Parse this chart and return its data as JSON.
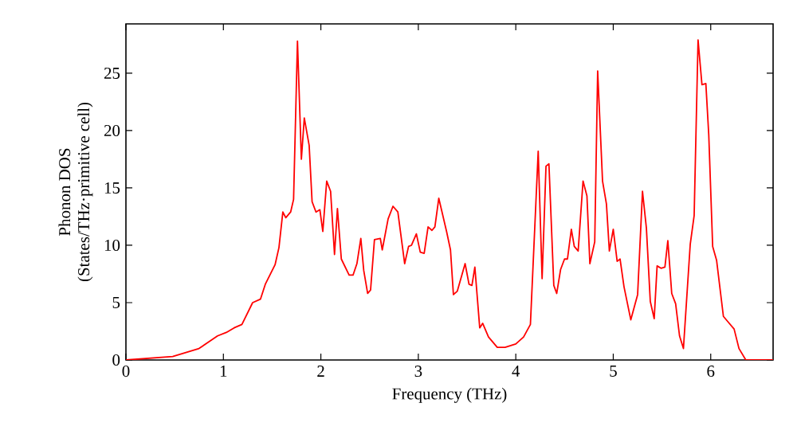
{
  "chart_data": {
    "type": "line",
    "xlabel": "Frequency (THz)",
    "ylabel": "Phonon DOS\n(States/THz·primitive cell)",
    "xlim": [
      0,
      6.64
    ],
    "ylim": [
      0,
      29.3
    ],
    "xticks": [
      0,
      1,
      2,
      3,
      4,
      5,
      6
    ],
    "yticks": [
      0,
      5,
      10,
      15,
      20,
      25
    ],
    "series": [
      {
        "color": "#ff0000",
        "x": [
          0.0,
          0.48,
          0.75,
          0.94,
          1.03,
          1.11,
          1.19,
          1.3,
          1.38,
          1.43,
          1.53,
          1.57,
          1.61,
          1.64,
          1.69,
          1.72,
          1.76,
          1.8,
          1.83,
          1.88,
          1.91,
          1.95,
          1.99,
          2.02,
          2.06,
          2.1,
          2.14,
          2.17,
          2.21,
          2.29,
          2.33,
          2.37,
          2.41,
          2.44,
          2.48,
          2.51,
          2.55,
          2.61,
          2.63,
          2.69,
          2.74,
          2.79,
          2.86,
          2.9,
          2.93,
          2.98,
          3.02,
          3.06,
          3.1,
          3.14,
          3.17,
          3.21,
          3.29,
          3.33,
          3.36,
          3.4,
          3.48,
          3.52,
          3.55,
          3.58,
          3.63,
          3.66,
          3.72,
          3.81,
          3.89,
          4.0,
          4.08,
          4.15,
          4.23,
          4.27,
          4.31,
          4.34,
          4.39,
          4.42,
          4.46,
          4.5,
          4.53,
          4.57,
          4.6,
          4.64,
          4.69,
          4.73,
          4.76,
          4.81,
          4.84,
          4.89,
          4.93,
          4.96,
          5.0,
          5.04,
          5.07,
          5.11,
          5.18,
          5.25,
          5.3,
          5.34,
          5.38,
          5.42,
          5.45,
          5.49,
          5.53,
          5.56,
          5.6,
          5.64,
          5.68,
          5.72,
          5.79,
          5.83,
          5.87,
          5.91,
          5.95,
          5.98,
          6.02,
          6.06,
          6.13,
          6.18,
          6.24,
          6.29,
          6.36,
          6.64
        ],
        "values": [
          0.0,
          0.3,
          1.0,
          2.1,
          2.4,
          2.8,
          3.1,
          5.0,
          5.3,
          6.6,
          8.3,
          9.8,
          12.9,
          12.4,
          12.9,
          14.0,
          27.8,
          17.5,
          21.1,
          18.7,
          13.8,
          12.9,
          13.1,
          11.2,
          15.6,
          14.7,
          9.2,
          13.2,
          8.8,
          7.4,
          7.4,
          8.4,
          10.6,
          7.8,
          5.8,
          6.1,
          10.5,
          10.6,
          9.6,
          12.3,
          13.4,
          12.9,
          8.4,
          9.9,
          10.0,
          11.0,
          9.4,
          9.3,
          11.6,
          11.3,
          11.6,
          14.1,
          11.2,
          9.6,
          5.7,
          6.0,
          8.4,
          6.6,
          6.5,
          8.1,
          2.8,
          3.2,
          2.0,
          1.1,
          1.1,
          1.4,
          2.0,
          3.1,
          18.2,
          7.1,
          16.9,
          17.1,
          6.5,
          5.8,
          7.9,
          8.8,
          8.8,
          11.4,
          9.9,
          9.5,
          15.6,
          14.3,
          8.4,
          10.3,
          25.2,
          15.6,
          13.6,
          9.5,
          11.4,
          8.6,
          8.8,
          6.4,
          3.5,
          5.7,
          14.7,
          11.5,
          5.1,
          3.6,
          8.2,
          8.0,
          8.1,
          10.4,
          5.8,
          4.9,
          2.1,
          1.0,
          10.1,
          12.6,
          27.9,
          24.0,
          24.1,
          19.6,
          9.9,
          8.7,
          3.8,
          3.3,
          2.7,
          1.0,
          0.0,
          0.0
        ]
      }
    ]
  }
}
